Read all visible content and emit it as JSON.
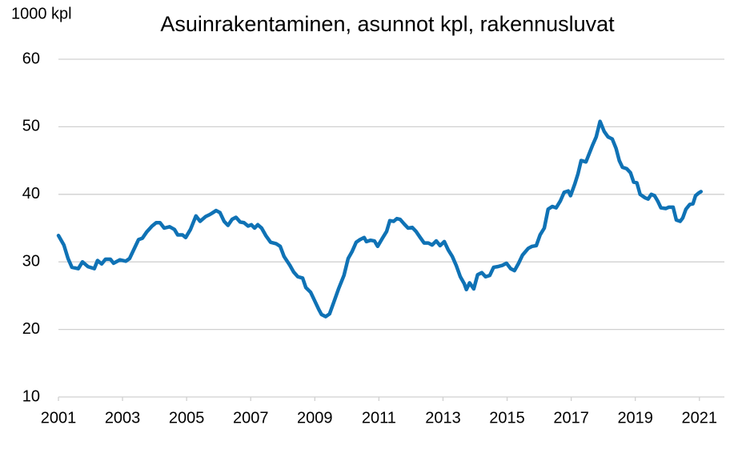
{
  "chart_data": {
    "type": "line",
    "title": "Asuinrakentaminen, asunnot kpl, rakennusluvat",
    "y_label": "1000 kpl",
    "xlim": [
      2001,
      2021.78
    ],
    "xticks": [
      2001,
      2003,
      2005,
      2007,
      2009,
      2011,
      2013,
      2015,
      2017,
      2019,
      2021
    ],
    "ylim": [
      10,
      60
    ],
    "yticks": [
      10,
      20,
      30,
      40,
      50,
      60
    ],
    "grid": true,
    "series": [
      {
        "color": "#0f72b5",
        "x": [
          2001.0,
          2001.17,
          2001.3,
          2001.42,
          2001.62,
          2001.75,
          2001.92,
          2002.12,
          2002.22,
          2002.35,
          2002.47,
          2002.62,
          2002.72,
          2002.92,
          2003.1,
          2003.22,
          2003.35,
          2003.5,
          2003.62,
          2003.75,
          2003.92,
          2004.05,
          2004.17,
          2004.3,
          2004.47,
          2004.62,
          2004.72,
          2004.87,
          2004.97,
          2005.12,
          2005.29,
          2005.42,
          2005.59,
          2005.72,
          2005.79,
          2005.92,
          2006.04,
          2006.17,
          2006.29,
          2006.42,
          2006.54,
          2006.67,
          2006.79,
          2006.92,
          2007.02,
          2007.12,
          2007.22,
          2007.34,
          2007.47,
          2007.62,
          2007.79,
          2007.92,
          2008.04,
          2008.22,
          2008.34,
          2008.47,
          2008.62,
          2008.72,
          2008.87,
          2008.99,
          2009.12,
          2009.21,
          2009.34,
          2009.46,
          2009.59,
          2009.74,
          2009.91,
          2010.04,
          2010.16,
          2010.29,
          2010.41,
          2010.54,
          2010.61,
          2010.74,
          2010.86,
          2010.96,
          2011.11,
          2011.24,
          2011.34,
          2011.46,
          2011.56,
          2011.66,
          2011.79,
          2011.91,
          2012.04,
          2012.16,
          2012.29,
          2012.41,
          2012.54,
          2012.66,
          2012.79,
          2012.91,
          2013.04,
          2013.16,
          2013.29,
          2013.41,
          2013.54,
          2013.66,
          2013.73,
          2013.83,
          2013.96,
          2014.08,
          2014.21,
          2014.33,
          2014.46,
          2014.58,
          2014.71,
          2014.86,
          2014.98,
          2015.11,
          2015.23,
          2015.36,
          2015.48,
          2015.66,
          2015.78,
          2015.91,
          2016.03,
          2016.16,
          2016.28,
          2016.41,
          2016.53,
          2016.66,
          2016.78,
          2016.91,
          2016.98,
          2017.11,
          2017.21,
          2017.31,
          2017.46,
          2017.56,
          2017.66,
          2017.78,
          2017.9,
          2018.03,
          2018.15,
          2018.28,
          2018.4,
          2018.5,
          2018.6,
          2018.73,
          2018.85,
          2018.95,
          2019.05,
          2019.15,
          2019.3,
          2019.4,
          2019.5,
          2019.6,
          2019.7,
          2019.8,
          2019.95,
          2020.05,
          2020.18,
          2020.28,
          2020.4,
          2020.48,
          2020.58,
          2020.7,
          2020.8,
          2020.88,
          2020.98,
          2021.05
        ],
        "values": [
          33.9,
          32.5,
          30.5,
          29.2,
          29.0,
          30.0,
          29.3,
          29.0,
          30.2,
          29.7,
          30.4,
          30.4,
          29.8,
          30.3,
          30.1,
          30.5,
          31.8,
          33.3,
          33.5,
          34.4,
          35.3,
          35.8,
          35.8,
          35.0,
          35.2,
          34.8,
          34.0,
          34.0,
          33.6,
          34.8,
          36.8,
          36.0,
          36.7,
          37.0,
          37.2,
          37.6,
          37.3,
          36.0,
          35.4,
          36.3,
          36.6,
          35.9,
          35.8,
          35.3,
          35.5,
          35.0,
          35.5,
          35.0,
          33.9,
          32.9,
          32.7,
          32.3,
          30.8,
          29.5,
          28.5,
          27.8,
          27.6,
          26.2,
          25.5,
          24.3,
          23.0,
          22.2,
          21.9,
          22.3,
          24.0,
          26.0,
          28.0,
          30.5,
          31.5,
          32.9,
          33.3,
          33.6,
          33.0,
          33.2,
          33.1,
          32.3,
          33.5,
          34.5,
          36.1,
          36.0,
          36.4,
          36.3,
          35.6,
          35.0,
          35.1,
          34.5,
          33.6,
          32.8,
          32.8,
          32.5,
          33.1,
          32.4,
          33.0,
          31.8,
          30.8,
          29.5,
          27.8,
          26.8,
          25.9,
          26.9,
          26.0,
          28.1,
          28.4,
          27.8,
          28.0,
          29.2,
          29.3,
          29.5,
          29.8,
          29.0,
          28.7,
          29.8,
          31.0,
          32.0,
          32.3,
          32.4,
          34.0,
          35.0,
          37.8,
          38.2,
          38.0,
          39.0,
          40.3,
          40.5,
          39.8,
          41.5,
          43.0,
          45.0,
          44.8,
          46.0,
          47.2,
          48.5,
          50.8,
          49.3,
          48.5,
          48.2,
          46.8,
          45.0,
          44.0,
          43.8,
          43.2,
          41.8,
          41.7,
          40.0,
          39.5,
          39.3,
          40.0,
          39.8,
          39.0,
          38.0,
          37.9,
          38.1,
          38.1,
          36.2,
          36.0,
          36.5,
          37.8,
          38.5,
          38.6,
          39.8,
          40.2,
          40.4
        ]
      }
    ]
  }
}
